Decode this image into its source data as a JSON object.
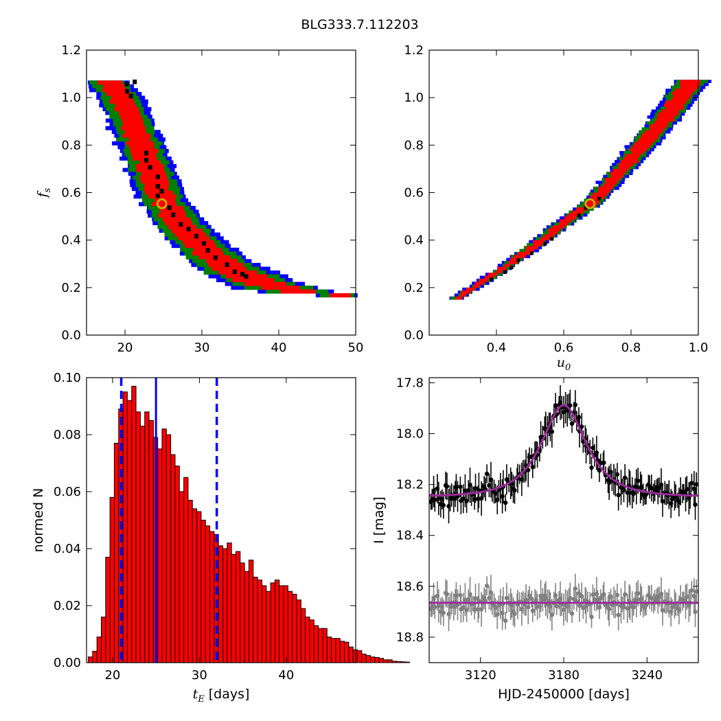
{
  "figure": {
    "suptitle": "BLG333.7.112203"
  },
  "chart_data": [
    {
      "id": "tE-vs-fs",
      "type": "heatmap",
      "xlabel": "",
      "ylabel_base": "f",
      "ylabel_sub": "s",
      "xlim": [
        15,
        50
      ],
      "ylim": [
        0.0,
        1.2
      ],
      "xticks": [
        20,
        30,
        40,
        50
      ],
      "yticks": [
        0.0,
        0.2,
        0.4,
        0.6,
        0.8,
        1.0,
        1.2
      ],
      "levels": [
        {
          "name": "blue",
          "color": "#0000ff",
          "widthFactor": 1.0
        },
        {
          "name": "green",
          "color": "#007f00",
          "widthFactor": 0.8
        },
        {
          "name": "red",
          "color": "#ff0000",
          "widthFactor": 0.5
        }
      ],
      "ridge": [
        [
          17.5,
          1.07
        ],
        [
          19.5,
          0.98
        ],
        [
          21,
          0.86
        ],
        [
          22.5,
          0.75
        ],
        [
          24,
          0.62
        ],
        [
          25,
          0.55
        ],
        [
          27,
          0.46
        ],
        [
          30,
          0.36
        ],
        [
          33,
          0.28
        ],
        [
          37,
          0.22
        ],
        [
          41,
          0.18
        ],
        [
          45,
          0.165
        ],
        [
          47.5,
          0.16
        ]
      ],
      "halfwidth": [
        [
          17.5,
          2.8
        ],
        [
          22,
          3.2
        ],
        [
          25,
          3.2
        ],
        [
          30,
          4.0
        ],
        [
          35,
          5.0
        ],
        [
          40,
          5.5
        ],
        [
          45,
          4.0
        ],
        [
          47.5,
          2.8
        ]
      ],
      "fs_range": [
        0.16,
        1.07
      ],
      "black_cells": [
        [
          20,
          1.05
        ],
        [
          20,
          1.02
        ],
        [
          20.5,
          1.0
        ],
        [
          21,
          1.06
        ],
        [
          22.5,
          0.76
        ],
        [
          22.5,
          0.73
        ],
        [
          23,
          0.7
        ],
        [
          24,
          0.66
        ],
        [
          24,
          0.62
        ],
        [
          24.5,
          0.6
        ],
        [
          24,
          0.58
        ],
        [
          25.5,
          0.53
        ],
        [
          26,
          0.5
        ],
        [
          27,
          0.46
        ],
        [
          28,
          0.44
        ],
        [
          29,
          0.41
        ],
        [
          30,
          0.38
        ],
        [
          30.5,
          0.35
        ],
        [
          31.5,
          0.32
        ],
        [
          34,
          0.26
        ],
        [
          35,
          0.25
        ],
        [
          35.5,
          0.24
        ],
        [
          33,
          0.29
        ]
      ],
      "best_fit": {
        "x": 24.8,
        "y": 0.553
      }
    },
    {
      "id": "u0-vs-fs",
      "type": "heatmap",
      "xlabel_base": "u",
      "xlabel_sub": "0",
      "ylabel": "",
      "xlim": [
        0.2,
        1.0
      ],
      "ylim": [
        0.0,
        1.2
      ],
      "xticks": [
        0.4,
        0.6,
        0.8,
        1.0
      ],
      "yticks": [
        0.0,
        0.2,
        0.4,
        0.6,
        0.8,
        1.0,
        1.2
      ],
      "levels": [
        {
          "name": "blue",
          "color": "#0000ff",
          "widthFactor": 1.0
        },
        {
          "name": "green",
          "color": "#007f00",
          "widthFactor": 0.78
        },
        {
          "name": "red",
          "color": "#ff0000",
          "widthFactor": 0.52
        }
      ],
      "ridge": [
        [
          0.28,
          0.15
        ],
        [
          0.4,
          0.26
        ],
        [
          0.5,
          0.36
        ],
        [
          0.6,
          0.47
        ],
        [
          0.68,
          0.55
        ],
        [
          0.8,
          0.74
        ],
        [
          0.9,
          0.91
        ],
        [
          0.98,
          1.07
        ]
      ],
      "halfwidth": [
        [
          0.15,
          0.02
        ],
        [
          0.4,
          0.028
        ],
        [
          0.7,
          0.04
        ],
        [
          1.07,
          0.055
        ]
      ],
      "fs_range": [
        0.15,
        1.07
      ],
      "black_cells": [
        [
          0.42,
          0.26
        ],
        [
          0.44,
          0.28
        ],
        [
          0.46,
          0.31
        ],
        [
          0.5,
          0.34
        ],
        [
          0.54,
          0.38
        ],
        [
          0.56,
          0.4
        ],
        [
          0.64,
          0.5
        ],
        [
          0.66,
          0.53
        ],
        [
          0.7,
          0.57
        ],
        [
          0.38,
          0.23
        ]
      ],
      "best_fit": {
        "x": 0.678,
        "y": 0.553
      }
    },
    {
      "id": "tE-histogram",
      "type": "bar",
      "xlabel_base": "t",
      "xlabel_sub": "E",
      "xlabel_unit": "[days]",
      "ylabel": "normed N",
      "xlim": [
        17,
        48
      ],
      "ylim": [
        0.0,
        0.1
      ],
      "xticks": [
        20,
        30,
        40
      ],
      "yticks": [
        0.0,
        0.02,
        0.04,
        0.06,
        0.08,
        0.1
      ],
      "bar_color": "#ff0000",
      "bins": {
        "start": 17.2,
        "width": 0.5,
        "values": [
          0.002,
          0.004,
          0.009,
          0.016,
          0.037,
          0.058,
          0.077,
          0.089,
          0.095,
          0.092,
          0.097,
          0.088,
          0.083,
          0.088,
          0.085,
          0.079,
          0.075,
          0.082,
          0.08,
          0.073,
          0.069,
          0.06,
          0.065,
          0.057,
          0.054,
          0.053,
          0.05,
          0.048,
          0.046,
          0.045,
          0.041,
          0.04,
          0.042,
          0.038,
          0.039,
          0.035,
          0.032,
          0.036,
          0.03,
          0.029,
          0.027,
          0.025,
          0.028,
          0.029,
          0.027,
          0.027,
          0.025,
          0.024,
          0.022,
          0.019,
          0.016,
          0.015,
          0.013,
          0.012,
          0.012,
          0.009,
          0.0085,
          0.0085,
          0.0075,
          0.0072,
          0.0055,
          0.0045,
          0.0042,
          0.003,
          0.0025,
          0.002,
          0.0018,
          0.0015,
          0.001,
          0.001,
          0.0005,
          0.0004,
          0.0003,
          0.0002
        ]
      },
      "median": 25.0,
      "bounds": [
        21.0,
        32.0
      ],
      "line_color": "#0000ff"
    },
    {
      "id": "light-curve",
      "type": "scatter",
      "xlabel": "HJD-2450000 [days]",
      "ylabel": "I [mag]",
      "xlim": [
        3083,
        3277
      ],
      "ylim": [
        18.9,
        17.78
      ],
      "y_inverted": true,
      "xticks": [
        3120,
        3180,
        3240
      ],
      "yticks": [
        17.8,
        18.0,
        18.2,
        18.4,
        18.6,
        18.8
      ],
      "model": {
        "t0": 3180,
        "tE": 25,
        "u0": 0.68,
        "fs": 0.55,
        "base": 18.248,
        "color": "#9b2a9b"
      },
      "residual_level": 18.665,
      "series": [
        {
          "role": "data",
          "color": "#000000"
        },
        {
          "role": "residuals",
          "color": "#808080"
        }
      ]
    }
  ]
}
